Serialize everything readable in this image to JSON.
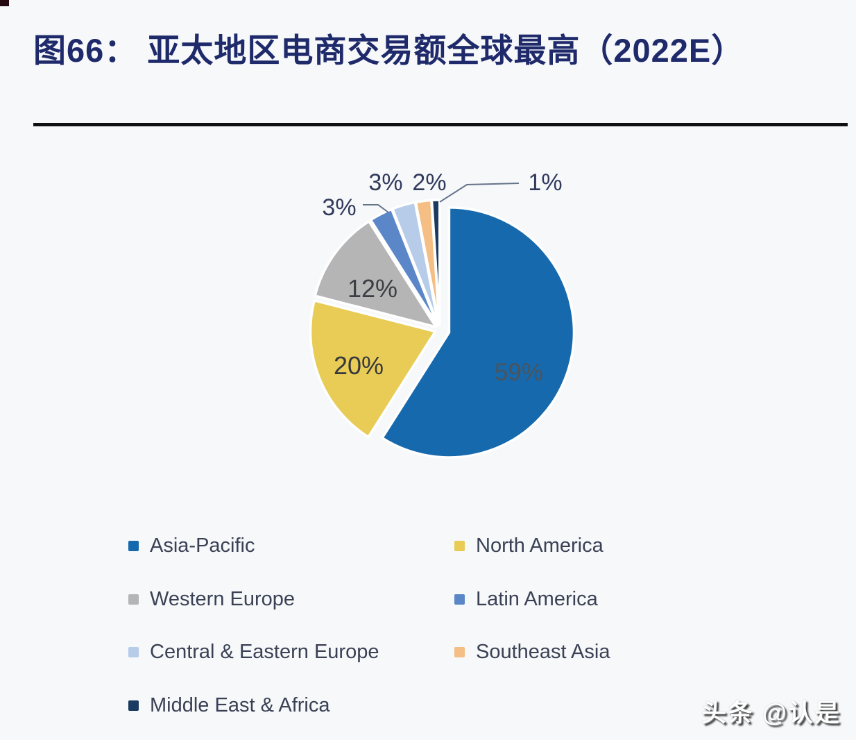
{
  "page": {
    "background": "#F6F8FA"
  },
  "header": {
    "figure_title": "图66：  亚太地区电商交易额全球最高（2022E）",
    "title_color": "#1F2A6B"
  },
  "chart_data": {
    "type": "pie",
    "title": "亚太地区电商交易额全球最高（2022E）",
    "value_unit": "%",
    "start_angle_deg": 0,
    "direction": "clockwise",
    "label_format": "{value}%",
    "legend_position": "bottom",
    "legend_columns": 2,
    "slices": [
      {
        "label": "Asia-Pacific",
        "value": 59,
        "color": "#1769AD"
      },
      {
        "label": "North America",
        "value": 20,
        "color": "#E8CC55"
      },
      {
        "label": "Western Europe",
        "value": 12,
        "color": "#B5B5B6"
      },
      {
        "label": "Latin America",
        "value": 3,
        "color": "#5B87C9"
      },
      {
        "label": "Central & Eastern Europe",
        "value": 3,
        "color": "#B7CCE9"
      },
      {
        "label": "Southeast Asia",
        "value": 2,
        "color": "#F4BE85"
      },
      {
        "label": "Middle East & Africa",
        "value": 1,
        "color": "#1B3A61"
      }
    ]
  },
  "watermark": {
    "text": "头条 @认是"
  }
}
